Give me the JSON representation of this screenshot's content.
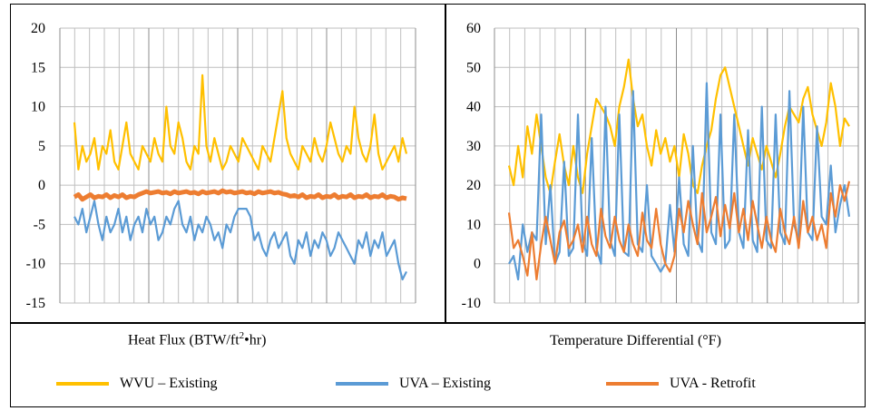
{
  "colors": {
    "wvu_existing": "#FFC000",
    "uva_existing": "#5B9BD5",
    "uva_retrofit": "#ED7D31",
    "grid": "#BFBFBF"
  },
  "legend": [
    {
      "label": "WVU – Existing",
      "color": "#FFC000"
    },
    {
      "label": "UVA – Existing",
      "color": "#5B9BD5"
    },
    {
      "label": "UVA - Retrofit",
      "color": "#ED7D31"
    }
  ],
  "chart_data": [
    {
      "type": "line",
      "xlabel_prefix": "Heat Flux (BTW/ft",
      "xlabel_sup": "2",
      "xlabel_suffix": "•hr)",
      "ylabel": "",
      "ylim": [
        -15,
        20
      ],
      "yticks": [
        "20",
        "15",
        "10",
        "5",
        "0",
        "-5",
        "-10",
        "-15"
      ],
      "grid": true,
      "series": [
        {
          "name": "WVU – Existing",
          "values": [
            8,
            2,
            5,
            3,
            4,
            6,
            2,
            5,
            4,
            7,
            3,
            2,
            5,
            8,
            4,
            3,
            2,
            5,
            4,
            3,
            6,
            4,
            3,
            10,
            5,
            4,
            8,
            6,
            3,
            2,
            5,
            4,
            14,
            5,
            3,
            6,
            4,
            2,
            3,
            5,
            4,
            3,
            6,
            5,
            4,
            3,
            2,
            5,
            4,
            3,
            6,
            9,
            12,
            6,
            4,
            3,
            2,
            5,
            4,
            3,
            6,
            4,
            3,
            5,
            8,
            6,
            4,
            3,
            5,
            4,
            10,
            6,
            4,
            3,
            5,
            9,
            4,
            2,
            3,
            4,
            5,
            3,
            6,
            4
          ]
        },
        {
          "name": "UVA – Existing",
          "values": [
            -4,
            -5,
            -3,
            -6,
            -4,
            -2,
            -5,
            -7,
            -4,
            -6,
            -5,
            -3,
            -6,
            -4,
            -7,
            -5,
            -4,
            -6,
            -3,
            -5,
            -4,
            -7,
            -6,
            -4,
            -5,
            -3,
            -2,
            -5,
            -6,
            -4,
            -7,
            -5,
            -6,
            -4,
            -5,
            -7,
            -6,
            -8,
            -5,
            -6,
            -4,
            -3,
            -3,
            -3,
            -4,
            -7,
            -6,
            -8,
            -9,
            -7,
            -6,
            -8,
            -7,
            -6,
            -9,
            -10,
            -7,
            -8,
            -6,
            -9,
            -7,
            -8,
            -6,
            -7,
            -9,
            -8,
            -6,
            -7,
            -8,
            -9,
            -10,
            -7,
            -8,
            -6,
            -9,
            -7,
            -8,
            -6,
            -9,
            -8,
            -7,
            -10,
            -12,
            -11
          ]
        },
        {
          "name": "UVA - Retrofit",
          "values": [
            -1.5,
            -1.2,
            -1.8,
            -1.5,
            -1.2,
            -1.6,
            -1.4,
            -1.5,
            -1.2,
            -1.6,
            -1.3,
            -1.5,
            -1.2,
            -1.6,
            -1.4,
            -1.5,
            -1.2,
            -1.0,
            -0.8,
            -1.0,
            -0.9,
            -0.8,
            -1.0,
            -0.9,
            -1.1,
            -0.8,
            -1.0,
            -0.9,
            -0.8,
            -1.0,
            -0.9,
            -1.1,
            -0.8,
            -1.0,
            -0.9,
            -0.8,
            -1.0,
            -0.7,
            -0.9,
            -0.8,
            -1.0,
            -0.9,
            -0.8,
            -1.0,
            -0.9,
            -1.1,
            -0.8,
            -1.0,
            -0.9,
            -0.8,
            -1.0,
            -0.9,
            -1.1,
            -1.2,
            -1.4,
            -1.3,
            -1.5,
            -1.2,
            -1.6,
            -1.4,
            -1.5,
            -1.2,
            -1.6,
            -1.4,
            -1.5,
            -1.2,
            -1.6,
            -1.4,
            -1.5,
            -1.2,
            -1.6,
            -1.4,
            -1.5,
            -1.2,
            -1.6,
            -1.4,
            -1.5,
            -1.2,
            -1.6,
            -1.4,
            -1.5,
            -1.8,
            -1.6,
            -1.7
          ]
        }
      ]
    },
    {
      "type": "line",
      "xlabel": "Temperature Differential (°F)",
      "ylabel": "",
      "ylim": [
        -10,
        60
      ],
      "yticks": [
        "60",
        "50",
        "40",
        "30",
        "20",
        "10",
        "0",
        "-10"
      ],
      "grid": true,
      "series": [
        {
          "name": "WVU – Existing",
          "values": [
            25,
            20,
            30,
            22,
            35,
            28,
            38,
            30,
            22,
            18,
            26,
            33,
            25,
            20,
            30,
            22,
            18,
            28,
            35,
            42,
            40,
            38,
            35,
            30,
            40,
            45,
            52,
            42,
            35,
            38,
            30,
            25,
            34,
            28,
            32,
            26,
            30,
            22,
            33,
            28,
            20,
            18,
            25,
            30,
            34,
            42,
            48,
            50,
            45,
            40,
            35,
            30,
            25,
            32,
            28,
            24,
            30,
            26,
            22,
            28,
            35,
            40,
            38,
            36,
            42,
            45,
            38,
            34,
            30,
            36,
            46,
            40,
            30,
            37,
            35
          ]
        },
        {
          "name": "UVA – Existing",
          "values": [
            0,
            2,
            -4,
            10,
            3,
            8,
            6,
            38,
            5,
            20,
            0,
            3,
            26,
            2,
            4,
            38,
            6,
            2,
            32,
            4,
            0,
            40,
            6,
            2,
            38,
            3,
            2,
            44,
            5,
            3,
            20,
            2,
            0,
            -2,
            0,
            15,
            3,
            22,
            5,
            2,
            30,
            6,
            3,
            46,
            8,
            5,
            38,
            4,
            6,
            38,
            8,
            4,
            34,
            6,
            3,
            40,
            6,
            4,
            38,
            8,
            5,
            44,
            10,
            6,
            40,
            8,
            6,
            35,
            12,
            10,
            25,
            8,
            15,
            20,
            12
          ]
        },
        {
          "name": "UVA - Retrofit",
          "values": [
            13,
            4,
            6,
            2,
            -3,
            8,
            -4,
            5,
            12,
            6,
            0,
            8,
            11,
            4,
            6,
            10,
            3,
            12,
            5,
            2,
            14,
            7,
            4,
            12,
            6,
            3,
            10,
            5,
            2,
            13,
            6,
            4,
            14,
            5,
            0,
            -2,
            2,
            14,
            8,
            16,
            10,
            5,
            18,
            8,
            12,
            17,
            7,
            15,
            9,
            18,
            8,
            14,
            6,
            16,
            10,
            4,
            12,
            6,
            3,
            14,
            8,
            5,
            12,
            4,
            16,
            8,
            12,
            6,
            10,
            4,
            18,
            12,
            20,
            16,
            21
          ]
        }
      ]
    }
  ]
}
